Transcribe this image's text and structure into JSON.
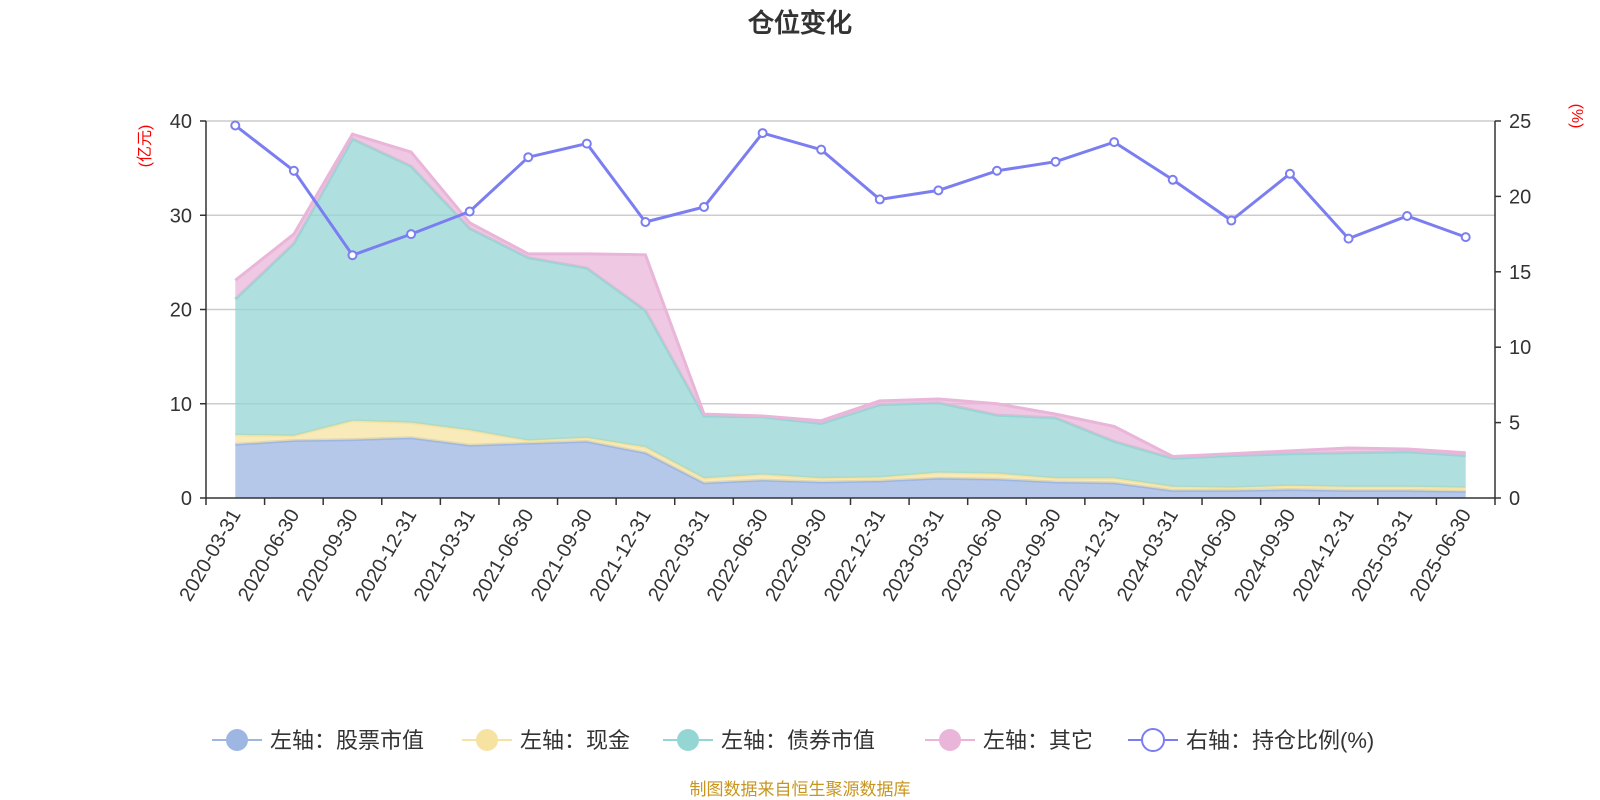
{
  "chart_data": {
    "type": "area",
    "title": "仓位变化",
    "x": [
      "2020-03-31",
      "2020-06-30",
      "2020-09-30",
      "2020-12-31",
      "2021-03-31",
      "2021-06-30",
      "2021-09-30",
      "2021-12-31",
      "2022-03-31",
      "2022-06-30",
      "2022-09-30",
      "2022-12-31",
      "2023-03-31",
      "2023-06-30",
      "2023-09-30",
      "2023-12-31",
      "2024-03-31",
      "2024-06-30",
      "2024-09-30",
      "2024-12-31",
      "2025-03-31",
      "2025-06-30"
    ],
    "left_axis": {
      "unit": "(亿元)",
      "ylim": [
        0,
        40
      ],
      "ticks": [
        0,
        10,
        20,
        30,
        40
      ]
    },
    "right_axis": {
      "unit": "(%)",
      "ylim": [
        0,
        25
      ],
      "ticks": [
        0,
        5,
        10,
        15,
        20,
        25
      ]
    },
    "stacked_series": [
      {
        "name": "左轴：股票市值",
        "color": "#9db6e2",
        "values": [
          5.7,
          6.1,
          6.2,
          6.4,
          5.6,
          5.8,
          6.0,
          4.8,
          1.6,
          1.9,
          1.7,
          1.8,
          2.1,
          2.0,
          1.7,
          1.6,
          0.8,
          0.8,
          0.9,
          0.8,
          0.8,
          0.7
        ]
      },
      {
        "name": "左轴：现金",
        "color": "#f6e3a1",
        "values": [
          1.0,
          0.5,
          2.0,
          1.6,
          1.6,
          0.3,
          0.4,
          0.6,
          0.5,
          0.6,
          0.4,
          0.4,
          0.6,
          0.6,
          0.4,
          0.5,
          0.4,
          0.3,
          0.4,
          0.4,
          0.4,
          0.4
        ]
      },
      {
        "name": "左轴：债券市值",
        "color": "#94d6d4",
        "values": [
          14.4,
          20.4,
          29.9,
          27.2,
          21.4,
          19.4,
          18.0,
          14.5,
          6.6,
          6.1,
          5.8,
          7.7,
          7.4,
          6.2,
          6.4,
          3.9,
          3.0,
          3.4,
          3.4,
          3.6,
          3.7,
          3.4
        ]
      },
      {
        "name": "左轴：其它",
        "color": "#e9b5d9",
        "values": [
          2.0,
          1.0,
          0.5,
          1.5,
          0.6,
          0.4,
          1.5,
          5.9,
          0.2,
          0.1,
          0.3,
          0.4,
          0.4,
          1.2,
          0.4,
          1.6,
          0.2,
          0.2,
          0.3,
          0.5,
          0.3,
          0.3
        ]
      }
    ],
    "line_series": {
      "name": "右轴：持仓比例(%)",
      "color": "#7b7ef0",
      "values": [
        24.7,
        21.7,
        16.1,
        17.5,
        19.0,
        22.6,
        23.5,
        18.3,
        19.3,
        24.2,
        23.1,
        19.8,
        20.4,
        21.7,
        22.3,
        23.6,
        21.1,
        18.4,
        21.5,
        17.2,
        18.7,
        17.3
      ]
    },
    "legend_position": "bottom",
    "grid": true
  },
  "source_note": "制图数据来自恒生聚源数据库"
}
